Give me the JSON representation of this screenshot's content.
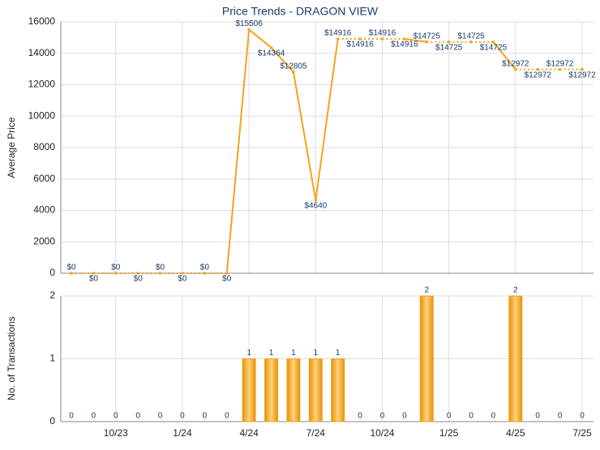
{
  "chart_data": [
    {
      "type": "line",
      "title": "Price Trends - DRAGON VIEW",
      "y_label": "Average Price",
      "color": "#f5a31a",
      "values": [
        0,
        0,
        0,
        0,
        0,
        0,
        0,
        0,
        15506,
        14364,
        12805,
        4640,
        14916,
        14916,
        14916,
        14916,
        14725,
        14725,
        14725,
        14725,
        12972,
        12972,
        12972,
        12972
      ],
      "value_labels": [
        "$0",
        "$0",
        "$0",
        "$0",
        "$0",
        "$0",
        "$0",
        "$0",
        "$15506",
        "$14364",
        "$12805",
        "$4640",
        "$14916",
        "$14916",
        "$14916",
        "$14916",
        "$14725",
        "$14725",
        "$14725",
        "$14725",
        "$12972",
        "$12972",
        "$12972",
        "$12972"
      ],
      "ylim": [
        0,
        16000
      ],
      "yticks": [
        0,
        2000,
        4000,
        6000,
        8000,
        10000,
        12000,
        14000,
        16000
      ],
      "grid": true
    },
    {
      "type": "bar",
      "y_label": "No. of Transactions",
      "color": "#f0a020",
      "categories": [
        null,
        null,
        "10/23",
        null,
        null,
        "1/24",
        null,
        null,
        "4/24",
        null,
        null,
        "7/24",
        null,
        null,
        "10/24",
        null,
        null,
        "1/25",
        null,
        null,
        "4/25",
        null,
        null,
        "7/25"
      ],
      "values": [
        0,
        0,
        0,
        0,
        0,
        0,
        0,
        0,
        1,
        1,
        1,
        1,
        1,
        0,
        0,
        0,
        2,
        0,
        0,
        0,
        2,
        0,
        0,
        0
      ],
      "ylim": [
        0,
        2
      ],
      "yticks": [
        0,
        1,
        2
      ],
      "grid": true
    }
  ]
}
